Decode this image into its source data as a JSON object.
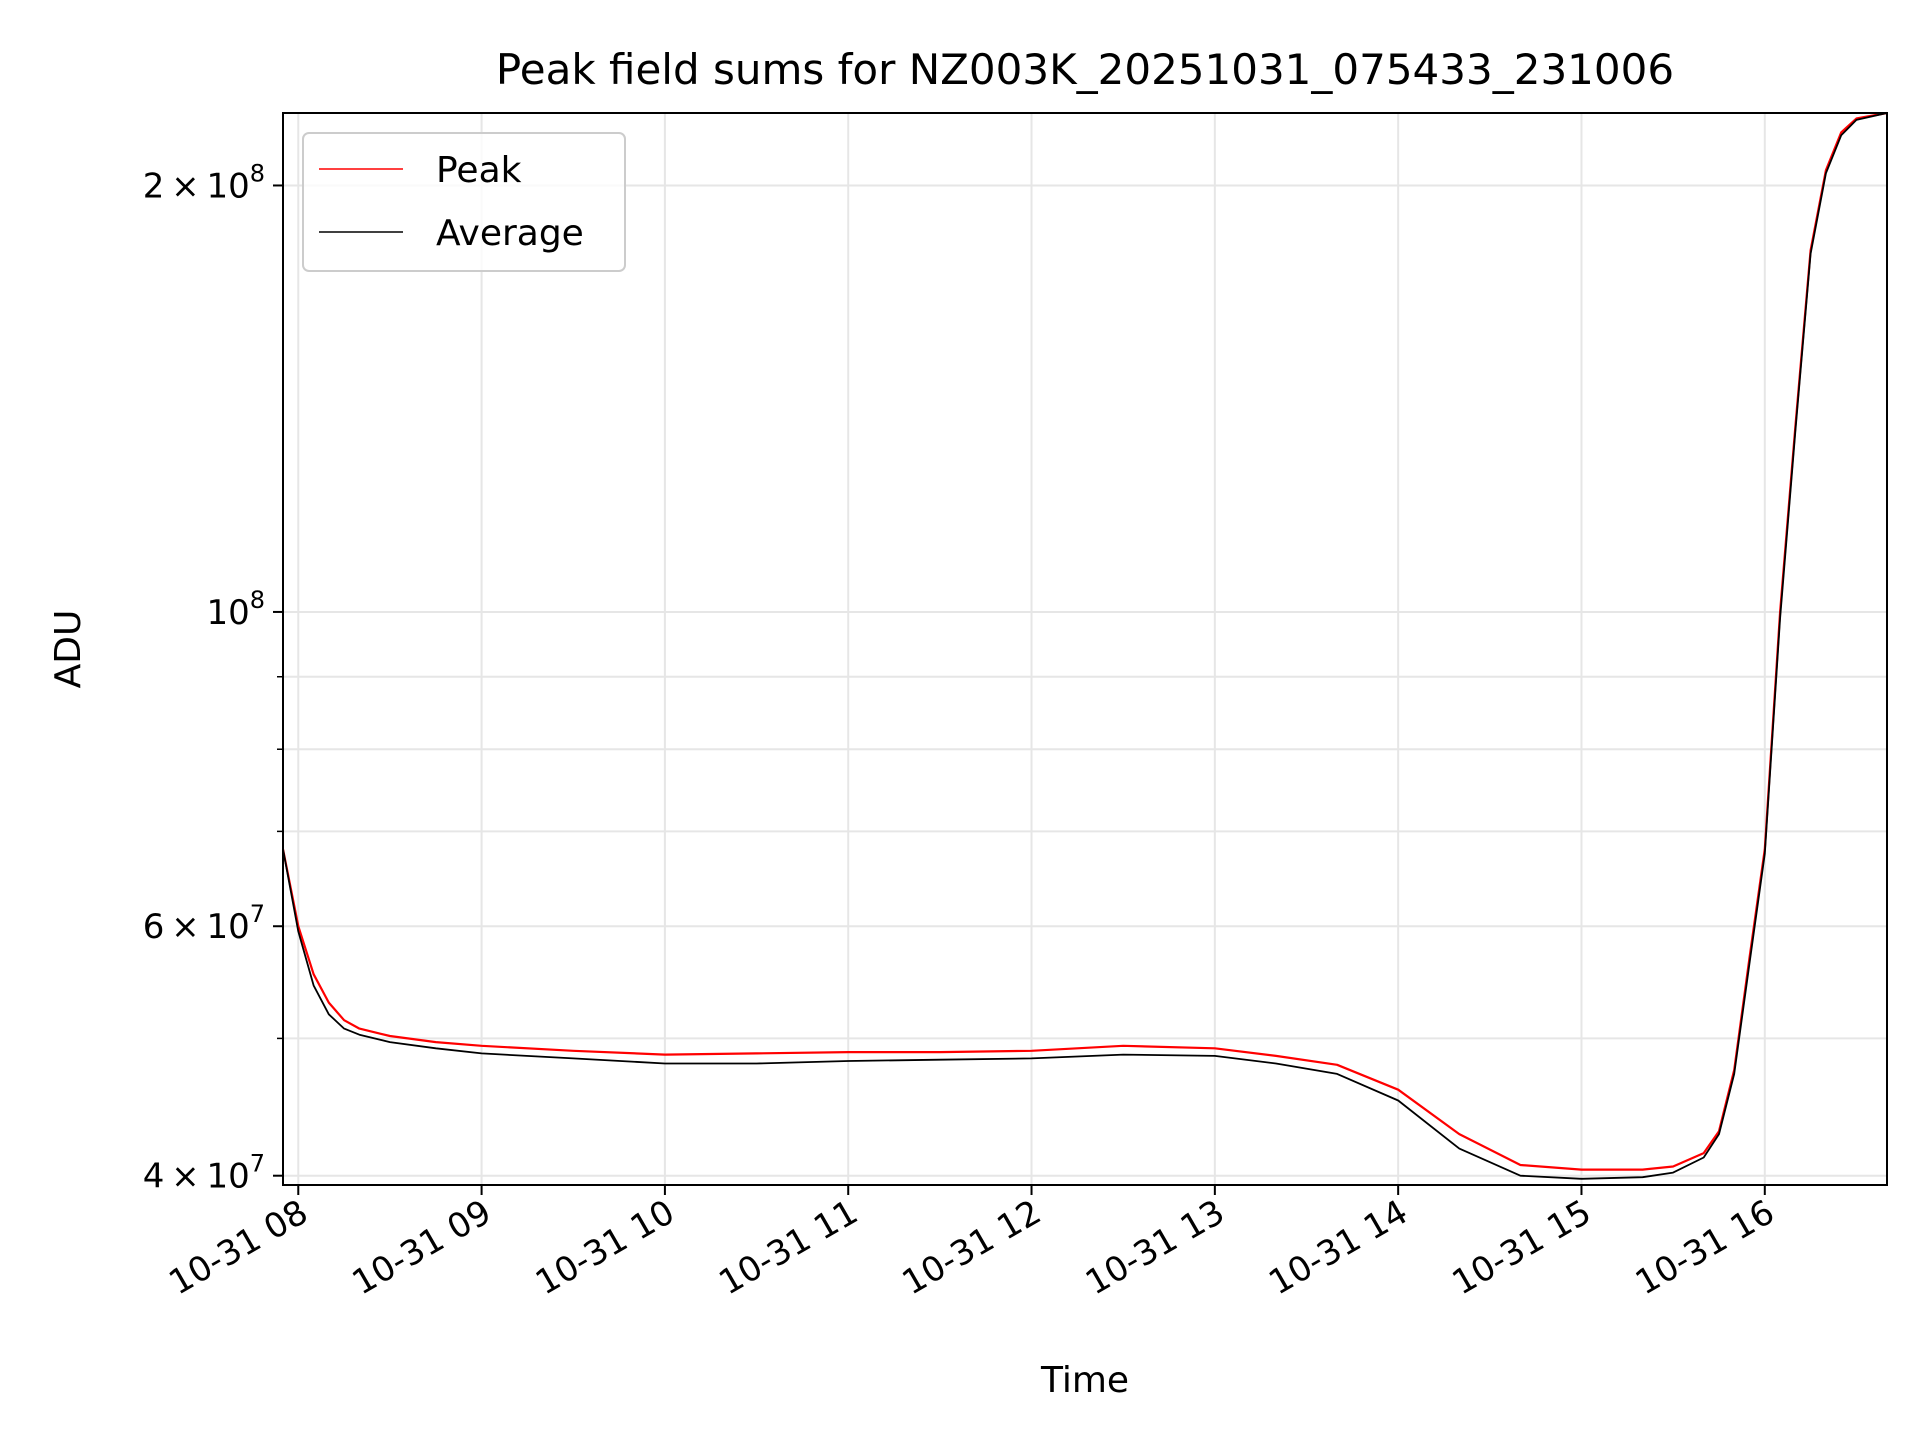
{
  "chart_data": {
    "type": "line",
    "title": "Peak field sums for NZ003K_20251031_075433_231006",
    "xlabel": "Time",
    "ylabel": "ADU",
    "y_scale": "log",
    "grid": true,
    "legend_position": "top-left",
    "x_domain": [
      "2025-10-31T07:55",
      "2025-10-31T16:40"
    ],
    "ylim": [
      39400000,
      225000000
    ],
    "x_ticks": [
      {
        "label": "10-31 08",
        "time": "2025-10-31T08:00"
      },
      {
        "label": "10-31 09",
        "time": "2025-10-31T09:00"
      },
      {
        "label": "10-31 10",
        "time": "2025-10-31T10:00"
      },
      {
        "label": "10-31 11",
        "time": "2025-10-31T11:00"
      },
      {
        "label": "10-31 12",
        "time": "2025-10-31T12:00"
      },
      {
        "label": "10-31 13",
        "time": "2025-10-31T13:00"
      },
      {
        "label": "10-31 14",
        "time": "2025-10-31T14:00"
      },
      {
        "label": "10-31 15",
        "time": "2025-10-31T15:00"
      },
      {
        "label": "10-31 16",
        "time": "2025-10-31T16:00"
      }
    ],
    "y_major_ticks": [
      {
        "value": 40000000,
        "mantissa": "4",
        "exponent": "7"
      },
      {
        "value": 60000000,
        "mantissa": "6",
        "exponent": "7"
      },
      {
        "value": 100000000,
        "mantissa": "",
        "exponent": "8"
      },
      {
        "value": 200000000,
        "mantissa": "2",
        "exponent": "8"
      }
    ],
    "y_minor_ticks": [
      50000000,
      70000000,
      80000000,
      90000000
    ],
    "series": [
      {
        "name": "Peak",
        "color": "#ff0000",
        "x": [
          "2025-10-31T07:55",
          "2025-10-31T08:00",
          "2025-10-31T08:05",
          "2025-10-31T08:10",
          "2025-10-31T08:15",
          "2025-10-31T08:20",
          "2025-10-31T08:30",
          "2025-10-31T08:45",
          "2025-10-31T09:00",
          "2025-10-31T09:30",
          "2025-10-31T10:00",
          "2025-10-31T10:30",
          "2025-10-31T11:00",
          "2025-10-31T11:30",
          "2025-10-31T12:00",
          "2025-10-31T12:30",
          "2025-10-31T13:00",
          "2025-10-31T13:20",
          "2025-10-31T13:40",
          "2025-10-31T14:00",
          "2025-10-31T14:20",
          "2025-10-31T14:40",
          "2025-10-31T15:00",
          "2025-10-31T15:20",
          "2025-10-31T15:30",
          "2025-10-31T15:40",
          "2025-10-31T15:45",
          "2025-10-31T15:50",
          "2025-10-31T15:55",
          "2025-10-31T16:00",
          "2025-10-31T16:05",
          "2025-10-31T16:10",
          "2025-10-31T16:15",
          "2025-10-31T16:20",
          "2025-10-31T16:25",
          "2025-10-31T16:30",
          "2025-10-31T16:40"
        ],
        "y": [
          68000000,
          60000000,
          55500000,
          53000000,
          51500000,
          50800000,
          50200000,
          49700000,
          49400000,
          49000000,
          48700000,
          48800000,
          48900000,
          48900000,
          49000000,
          49400000,
          49200000,
          48600000,
          47900000,
          46000000,
          42800000,
          40700000,
          40400000,
          40400000,
          40600000,
          41500000,
          43000000,
          47500000,
          57000000,
          68000000,
          100000000,
          135000000,
          180000000,
          205000000,
          218000000,
          223000000,
          225000000
        ]
      },
      {
        "name": "Average",
        "color": "#000000",
        "x": [
          "2025-10-31T07:55",
          "2025-10-31T08:00",
          "2025-10-31T08:05",
          "2025-10-31T08:10",
          "2025-10-31T08:15",
          "2025-10-31T08:20",
          "2025-10-31T08:30",
          "2025-10-31T08:45",
          "2025-10-31T09:00",
          "2025-10-31T09:30",
          "2025-10-31T10:00",
          "2025-10-31T10:30",
          "2025-10-31T11:00",
          "2025-10-31T11:30",
          "2025-10-31T12:00",
          "2025-10-31T12:30",
          "2025-10-31T13:00",
          "2025-10-31T13:20",
          "2025-10-31T13:40",
          "2025-10-31T14:00",
          "2025-10-31T14:20",
          "2025-10-31T14:40",
          "2025-10-31T15:00",
          "2025-10-31T15:20",
          "2025-10-31T15:30",
          "2025-10-31T15:40",
          "2025-10-31T15:45",
          "2025-10-31T15:50",
          "2025-10-31T15:55",
          "2025-10-31T16:00",
          "2025-10-31T16:05",
          "2025-10-31T16:10",
          "2025-10-31T16:15",
          "2025-10-31T16:20",
          "2025-10-31T16:25",
          "2025-10-31T16:30",
          "2025-10-31T16:40"
        ],
        "y": [
          68000000,
          59500000,
          54500000,
          52000000,
          50800000,
          50300000,
          49700000,
          49200000,
          48800000,
          48400000,
          48000000,
          48000000,
          48200000,
          48300000,
          48400000,
          48700000,
          48600000,
          48000000,
          47200000,
          45200000,
          41800000,
          40000000,
          39800000,
          39900000,
          40200000,
          41200000,
          42800000,
          47200000,
          56500000,
          67500000,
          99000000,
          134000000,
          179000000,
          204000000,
          217000000,
          222500000,
          225000000
        ]
      }
    ]
  }
}
